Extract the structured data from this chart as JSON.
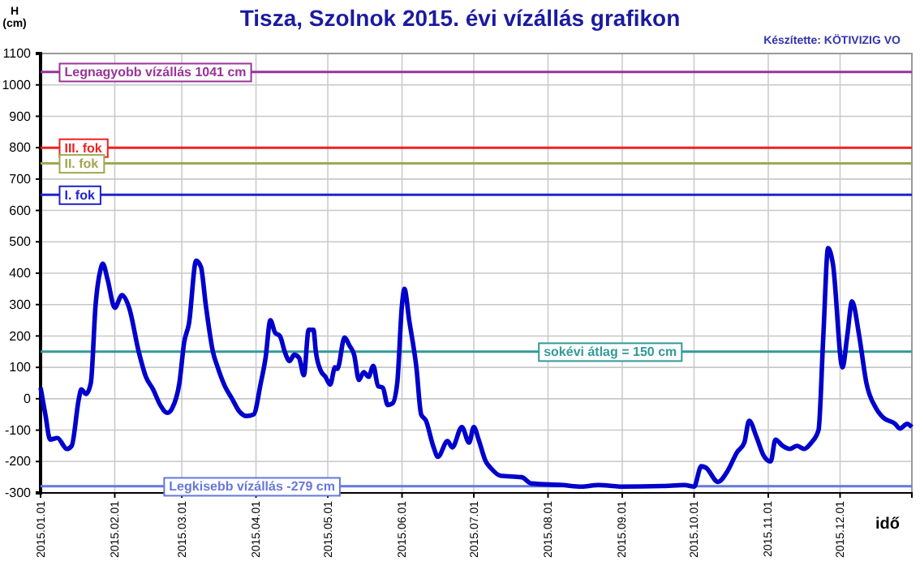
{
  "chart_data": {
    "type": "line",
    "title": "Tisza, Szolnok 2015. évi vízállás grafikon",
    "ylabel": "H (cm)",
    "xlabel": "idő",
    "annotations": [
      "Készítette: KÖTIVIZIG VO"
    ],
    "x": [
      "2015-01-01",
      "2015-01-03",
      "2015-01-05",
      "2015-01-08",
      "2015-01-12",
      "2015-01-14",
      "2015-01-17",
      "2015-01-18",
      "2015-01-20",
      "2015-01-22",
      "2015-01-24",
      "2015-01-26",
      "2015-01-27",
      "2015-01-29",
      "2015-02-01",
      "2015-02-04",
      "2015-02-07",
      "2015-02-11",
      "2015-02-14",
      "2015-02-17",
      "2015-02-20",
      "2015-02-23",
      "2015-02-25",
      "2015-02-28",
      "2015-03-02",
      "2015-03-04",
      "2015-03-07",
      "2015-03-09",
      "2015-03-11",
      "2015-03-14",
      "2015-03-16",
      "2015-03-19",
      "2015-03-22",
      "2015-03-25",
      "2015-03-28",
      "2015-03-31",
      "2015-04-03",
      "2015-04-05",
      "2015-04-07",
      "2015-04-09",
      "2015-04-11",
      "2015-04-13",
      "2015-04-15",
      "2015-04-17",
      "2015-04-19",
      "2015-04-21",
      "2015-04-23",
      "2015-04-25",
      "2015-04-26",
      "2015-04-28",
      "2015-04-30",
      "2015-05-02",
      "2015-05-04",
      "2015-05-05",
      "2015-05-08",
      "2015-05-10",
      "2015-05-12",
      "2015-05-14",
      "2015-05-16",
      "2015-05-18",
      "2015-05-20",
      "2015-05-22",
      "2015-05-24",
      "2015-05-26",
      "2015-05-28",
      "2015-05-30",
      "2015-06-01",
      "2015-06-02",
      "2015-06-04",
      "2015-06-07",
      "2015-06-09",
      "2015-06-11",
      "2015-06-14",
      "2015-06-16",
      "2015-06-20",
      "2015-06-22",
      "2015-06-26",
      "2015-06-29",
      "2015-07-01",
      "2015-07-03",
      "2015-07-06",
      "2015-07-08",
      "2015-07-12",
      "2015-07-21",
      "2015-07-25",
      "2015-08-07",
      "2015-08-15",
      "2015-08-22",
      "2015-09-01",
      "2015-09-18",
      "2015-09-27",
      "2015-10-01",
      "2015-10-04",
      "2015-10-06",
      "2015-10-11",
      "2015-10-15",
      "2015-10-19",
      "2015-10-22",
      "2015-10-24",
      "2015-10-27",
      "2015-10-30",
      "2015-11-02",
      "2015-11-04",
      "2015-11-07",
      "2015-11-10",
      "2015-11-13",
      "2015-11-16",
      "2015-11-19",
      "2015-11-22",
      "2015-11-24",
      "2015-11-26",
      "2015-11-28",
      "2015-12-02",
      "2015-12-04",
      "2015-12-06",
      "2015-12-09",
      "2015-12-12",
      "2015-12-16",
      "2015-12-19",
      "2015-12-24",
      "2015-12-26",
      "2015-12-29",
      "2015-12-31"
    ],
    "series": [
      {
        "color": "#0000cc",
        "values": [
          35,
          -50,
          -130,
          -125,
          -160,
          -150,
          0,
          30,
          15,
          50,
          300,
          410,
          430,
          380,
          290,
          330,
          290,
          150,
          70,
          30,
          -20,
          -45,
          -30,
          50,
          180,
          240,
          440,
          420,
          300,
          150,
          100,
          40,
          0,
          -40,
          -55,
          -50,
          50,
          130,
          250,
          210,
          200,
          150,
          120,
          140,
          130,
          75,
          220,
          220,
          150,
          90,
          70,
          45,
          100,
          95,
          195,
          170,
          140,
          60,
          85,
          70,
          105,
          40,
          35,
          -20,
          -15,
          50,
          300,
          350,
          250,
          100,
          -50,
          -70,
          -150,
          -185,
          -135,
          -155,
          -90,
          -140,
          -90,
          -130,
          -200,
          -220,
          -245,
          -250,
          -270,
          -275,
          -280,
          -275,
          -280,
          -278,
          -275,
          -280,
          -215,
          -220,
          -265,
          -230,
          -170,
          -140,
          -70,
          -120,
          -180,
          -200,
          -130,
          -150,
          -160,
          -150,
          -160,
          -140,
          -100,
          200,
          480,
          430,
          100,
          200,
          310,
          200,
          50,
          -30,
          -60,
          -80,
          -95,
          -80,
          -90
        ]
      }
    ],
    "xlim": [
      "2015-01-01",
      "2015-12-31"
    ],
    "xticks": [
      {
        "value": "2015-01-01",
        "label": "2015.01.01"
      },
      {
        "value": "2015-02-01",
        "label": "2015.02.01"
      },
      {
        "value": "2015-03-01",
        "label": "2015.03.01"
      },
      {
        "value": "2015-04-01",
        "label": "2015.04.01"
      },
      {
        "value": "2015-05-01",
        "label": "2015.05.01"
      },
      {
        "value": "2015-06-01",
        "label": "2015.06.01"
      },
      {
        "value": "2015-07-01",
        "label": "2015.07.01"
      },
      {
        "value": "2015-08-01",
        "label": "2015.08.01"
      },
      {
        "value": "2015-09-01",
        "label": "2015.09.01"
      },
      {
        "value": "2015-10-01",
        "label": "2015.10.01"
      },
      {
        "value": "2015-11-01",
        "label": "2015.11.01"
      },
      {
        "value": "2015-12-01",
        "label": "2015.12.01"
      }
    ],
    "ylim": [
      -300,
      1100
    ],
    "yticks": [
      -300,
      -200,
      -100,
      0,
      100,
      200,
      300,
      400,
      500,
      600,
      700,
      800,
      900,
      1000,
      1100
    ],
    "grid": true,
    "line_style": "solid",
    "marker": "none",
    "ref_lines": [
      {
        "axis": "y",
        "value": 1041,
        "label": "Legnagyobb vízállás 1041 cm",
        "color": "#993399"
      },
      {
        "axis": "y",
        "value": 800,
        "label": "III. fok",
        "color": "#ee2222"
      },
      {
        "axis": "y",
        "value": 750,
        "label": "II. fok",
        "color": "#a0a850"
      },
      {
        "axis": "y",
        "value": 650,
        "label": "I. fok",
        "color": "#2222cc"
      },
      {
        "axis": "y",
        "value": 150,
        "label": "sokévi átlag = 150 cm",
        "color": "#339999"
      },
      {
        "axis": "y",
        "value": -279,
        "label": "Legkisebb vízállás -279 cm",
        "color": "#6677dd"
      }
    ]
  }
}
